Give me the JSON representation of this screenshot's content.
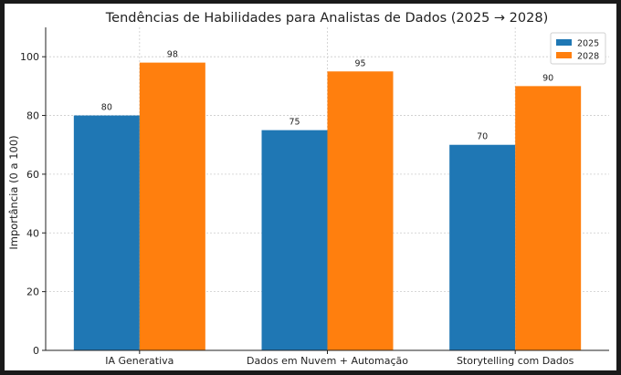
{
  "chart_data": {
    "type": "bar",
    "title": "Tendências de Habilidades para Analistas de Dados (2025 → 2028)",
    "xlabel": "",
    "ylabel": "Importância (0 a 100)",
    "ylim": [
      0,
      110
    ],
    "yticks": [
      0,
      20,
      40,
      60,
      80,
      100
    ],
    "grid": true,
    "legend_position": "top-right",
    "categories": [
      "IA Generativa",
      "Dados em Nuvem + Automação",
      "Storytelling com Dados"
    ],
    "series": [
      {
        "name": "2025",
        "color": "#1f77b4",
        "values": [
          80,
          75,
          70
        ]
      },
      {
        "name": "2028",
        "color": "#ff7f0e",
        "values": [
          98,
          95,
          90
        ]
      }
    ]
  }
}
